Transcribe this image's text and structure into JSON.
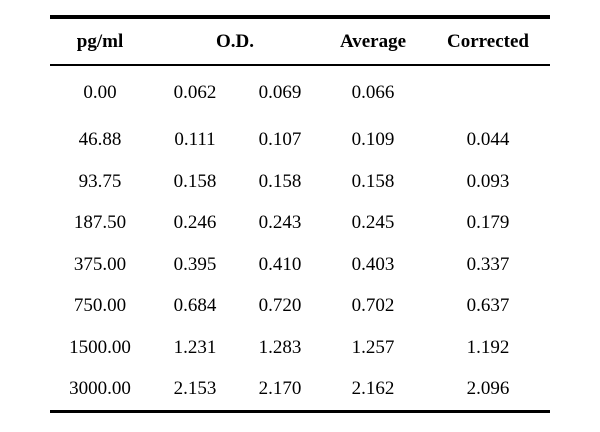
{
  "table": {
    "headers": {
      "concentration": "pg/ml",
      "od": "O.D.",
      "average": "Average",
      "corrected": "Corrected"
    },
    "rows": [
      {
        "conc": "0.00",
        "od1": "0.062",
        "od2": "0.069",
        "avg": "0.066",
        "corr": ""
      },
      {
        "conc": "46.88",
        "od1": "0.111",
        "od2": "0.107",
        "avg": "0.109",
        "corr": "0.044"
      },
      {
        "conc": "93.75",
        "od1": "0.158",
        "od2": "0.158",
        "avg": "0.158",
        "corr": "0.093"
      },
      {
        "conc": "187.50",
        "od1": "0.246",
        "od2": "0.243",
        "avg": "0.245",
        "corr": "0.179"
      },
      {
        "conc": "375.00",
        "od1": "0.395",
        "od2": "0.410",
        "avg": "0.403",
        "corr": "0.337"
      },
      {
        "conc": "750.00",
        "od1": "0.684",
        "od2": "0.720",
        "avg": "0.702",
        "corr": "0.637"
      },
      {
        "conc": "1500.00",
        "od1": "1.231",
        "od2": "1.283",
        "avg": "1.257",
        "corr": "1.192"
      },
      {
        "conc": "3000.00",
        "od1": "2.153",
        "od2": "2.170",
        "avg": "2.162",
        "corr": "2.096"
      }
    ]
  }
}
